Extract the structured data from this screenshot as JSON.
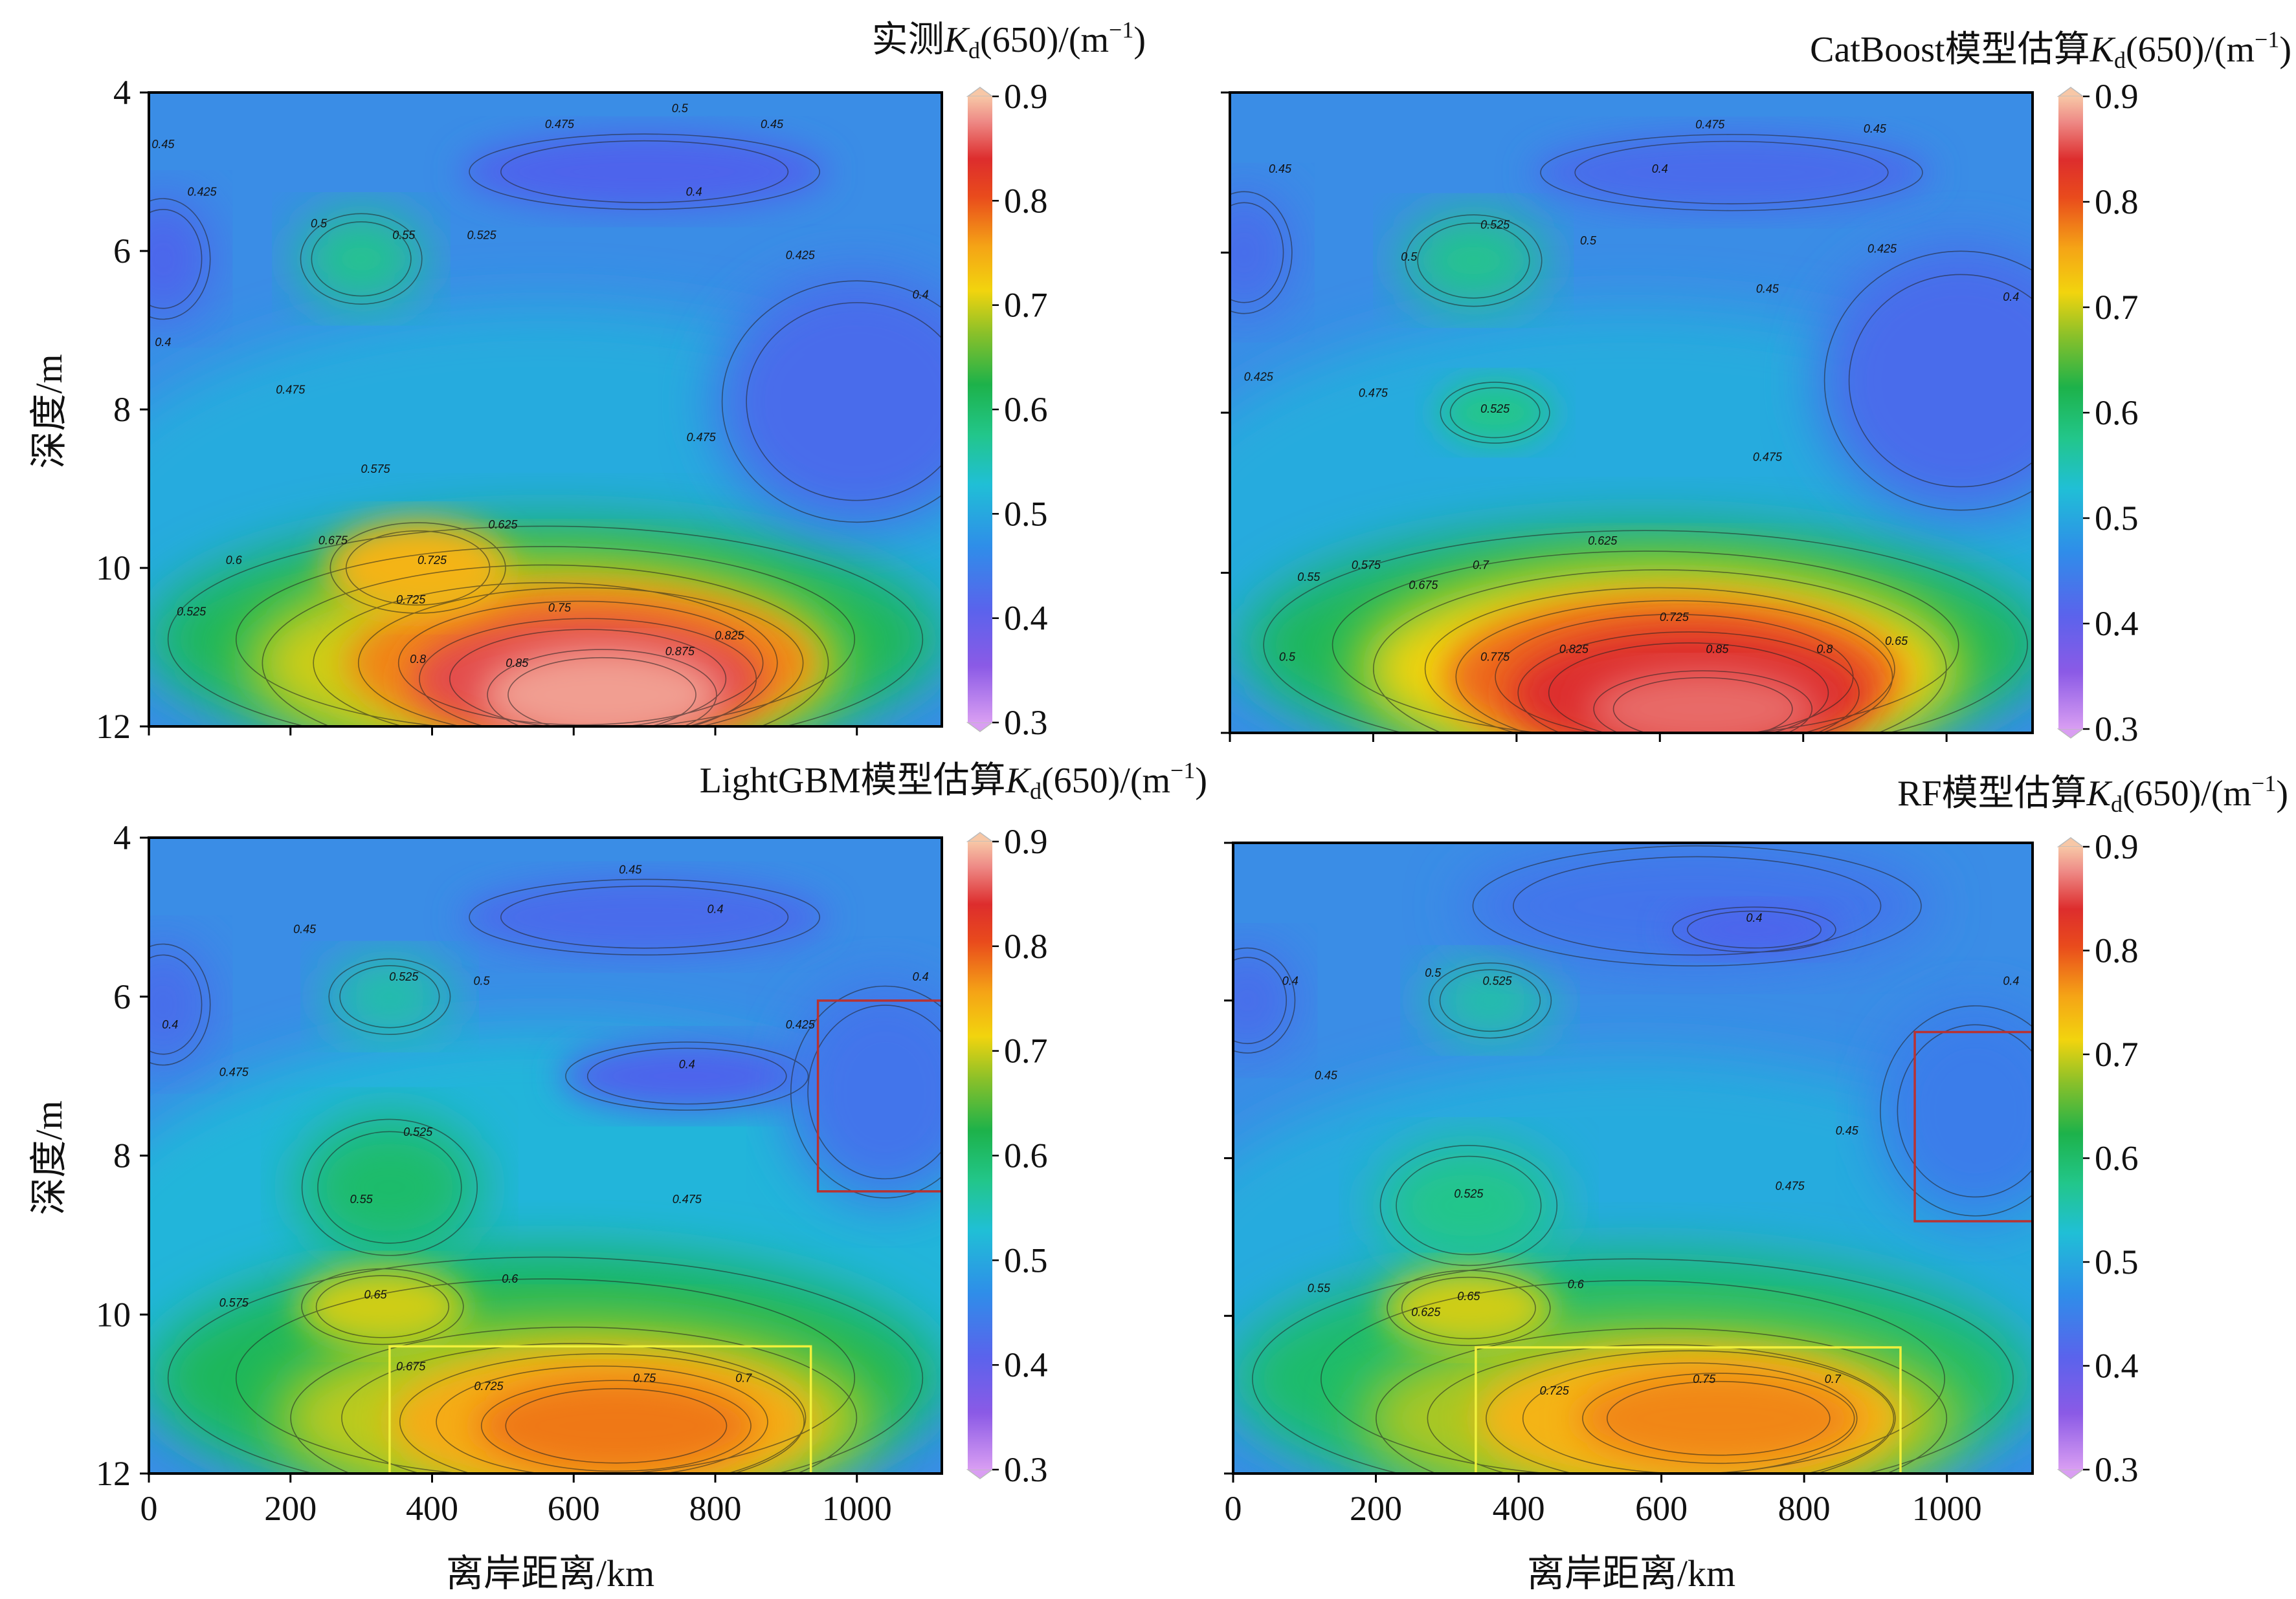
{
  "figure": {
    "x_axis_label": "离岸距离/km",
    "y_axis_label": "深度/m",
    "colorbar_ticks": [
      "0.9",
      "0.8",
      "0.7",
      "0.6",
      "0.5",
      "0.4",
      "0.3"
    ],
    "x_ticks": [
      "0",
      "200",
      "400",
      "600",
      "800",
      "1000"
    ],
    "y_ticks": [
      "4",
      "6",
      "8",
      "10",
      "12"
    ]
  },
  "chart_data": [
    {
      "type": "heatmap",
      "panel": "top-left",
      "title": {
        "prefix": "实测",
        "var": "K",
        "sub": "d",
        "mid": "(650)/(m",
        "sup": "−1",
        "end": ")"
      },
      "x_range": [
        0,
        1120
      ],
      "y_range": [
        4,
        12
      ],
      "color_range": [
        0.3,
        0.9
      ],
      "contour_labels": [
        {
          "x": 750,
          "y": 11.1,
          "v": "0.875"
        },
        {
          "x": 520,
          "y": 11.25,
          "v": "0.85"
        },
        {
          "x": 820,
          "y": 10.9,
          "v": "0.825"
        },
        {
          "x": 380,
          "y": 11.2,
          "v": "0.8"
        },
        {
          "x": 580,
          "y": 10.55,
          "v": "0.75"
        },
        {
          "x": 370,
          "y": 10.45,
          "v": "0.725"
        },
        {
          "x": 400,
          "y": 9.95,
          "v": "0.725"
        },
        {
          "x": 260,
          "y": 9.7,
          "v": "0.675"
        },
        {
          "x": 500,
          "y": 9.5,
          "v": "0.625"
        },
        {
          "x": 320,
          "y": 8.8,
          "v": "0.575"
        },
        {
          "x": 120,
          "y": 9.95,
          "v": "0.6"
        },
        {
          "x": 60,
          "y": 10.6,
          "v": "0.525"
        },
        {
          "x": 360,
          "y": 5.85,
          "v": "0.55"
        },
        {
          "x": 470,
          "y": 5.85,
          "v": "0.525"
        },
        {
          "x": 240,
          "y": 5.7,
          "v": "0.5"
        },
        {
          "x": 200,
          "y": 7.8,
          "v": "0.475"
        },
        {
          "x": 75,
          "y": 5.3,
          "v": "0.425"
        },
        {
          "x": 780,
          "y": 8.4,
          "v": "0.475"
        },
        {
          "x": 580,
          "y": 4.45,
          "v": "0.475"
        },
        {
          "x": 750,
          "y": 4.25,
          "v": "0.5"
        },
        {
          "x": 880,
          "y": 4.45,
          "v": "0.45"
        },
        {
          "x": 770,
          "y": 5.3,
          "v": "0.4"
        },
        {
          "x": 920,
          "y": 6.1,
          "v": "0.425"
        },
        {
          "x": 20,
          "y": 4.7,
          "v": "0.45"
        },
        {
          "x": 1090,
          "y": 6.6,
          "v": "0.4"
        },
        {
          "x": 20,
          "y": 7.2,
          "v": "0.4"
        }
      ]
    },
    {
      "type": "heatmap",
      "panel": "top-right",
      "title": {
        "prefix": "CatBoost模型估算",
        "var": "K",
        "sub": "d",
        "mid": "(650)/(m",
        "sup": "−1",
        "end": ")"
      },
      "x_range": [
        0,
        1120
      ],
      "y_range": [
        4,
        12
      ],
      "color_range": [
        0.3,
        0.9
      ],
      "contour_labels": [
        {
          "x": 680,
          "y": 11.0,
          "v": "0.85"
        },
        {
          "x": 480,
          "y": 11.0,
          "v": "0.825"
        },
        {
          "x": 830,
          "y": 11.0,
          "v": "0.8"
        },
        {
          "x": 370,
          "y": 11.1,
          "v": "0.775"
        },
        {
          "x": 620,
          "y": 10.6,
          "v": "0.725"
        },
        {
          "x": 350,
          "y": 9.95,
          "v": "0.7"
        },
        {
          "x": 270,
          "y": 10.2,
          "v": "0.675"
        },
        {
          "x": 190,
          "y": 9.95,
          "v": "0.575"
        },
        {
          "x": 520,
          "y": 9.65,
          "v": "0.625"
        },
        {
          "x": 110,
          "y": 10.1,
          "v": "0.55"
        },
        {
          "x": 930,
          "y": 10.9,
          "v": "0.65"
        },
        {
          "x": 80,
          "y": 11.1,
          "v": "0.5"
        },
        {
          "x": 370,
          "y": 5.7,
          "v": "0.525"
        },
        {
          "x": 370,
          "y": 8.0,
          "v": "0.525"
        },
        {
          "x": 500,
          "y": 5.9,
          "v": "0.5"
        },
        {
          "x": 250,
          "y": 6.1,
          "v": "0.5"
        },
        {
          "x": 200,
          "y": 7.8,
          "v": "0.475"
        },
        {
          "x": 40,
          "y": 7.6,
          "v": "0.425"
        },
        {
          "x": 750,
          "y": 8.6,
          "v": "0.475"
        },
        {
          "x": 670,
          "y": 4.45,
          "v": "0.475"
        },
        {
          "x": 900,
          "y": 4.5,
          "v": "0.45"
        },
        {
          "x": 70,
          "y": 5.0,
          "v": "0.45"
        },
        {
          "x": 600,
          "y": 5.0,
          "v": "0.4"
        },
        {
          "x": 750,
          "y": 6.5,
          "v": "0.45"
        },
        {
          "x": 910,
          "y": 6.0,
          "v": "0.425"
        },
        {
          "x": 1090,
          "y": 6.6,
          "v": "0.4"
        }
      ]
    },
    {
      "type": "heatmap",
      "panel": "bottom-left",
      "title": {
        "prefix": "LightGBM模型估算",
        "var": "K",
        "sub": "d",
        "mid": "(650)/(m",
        "sup": "−1",
        "end": ")"
      },
      "x_range": [
        0,
        1120
      ],
      "y_range": [
        4,
        12
      ],
      "color_range": [
        0.3,
        0.9
      ],
      "contour_labels": [
        {
          "x": 700,
          "y": 10.85,
          "v": "0.75"
        },
        {
          "x": 480,
          "y": 10.95,
          "v": "0.725"
        },
        {
          "x": 840,
          "y": 10.85,
          "v": "0.7"
        },
        {
          "x": 370,
          "y": 10.7,
          "v": "0.675"
        },
        {
          "x": 320,
          "y": 9.8,
          "v": "0.65"
        },
        {
          "x": 510,
          "y": 9.6,
          "v": "0.6"
        },
        {
          "x": 120,
          "y": 9.9,
          "v": "0.575"
        },
        {
          "x": 300,
          "y": 8.6,
          "v": "0.55"
        },
        {
          "x": 380,
          "y": 7.75,
          "v": "0.525"
        },
        {
          "x": 360,
          "y": 5.8,
          "v": "0.525"
        },
        {
          "x": 470,
          "y": 5.85,
          "v": "0.5"
        },
        {
          "x": 220,
          "y": 5.2,
          "v": "0.45"
        },
        {
          "x": 120,
          "y": 7.0,
          "v": "0.475"
        },
        {
          "x": 760,
          "y": 8.6,
          "v": "0.475"
        },
        {
          "x": 680,
          "y": 4.45,
          "v": "0.45"
        },
        {
          "x": 800,
          "y": 4.95,
          "v": "0.4"
        },
        {
          "x": 760,
          "y": 6.9,
          "v": "0.4"
        },
        {
          "x": 920,
          "y": 6.4,
          "v": "0.425"
        },
        {
          "x": 30,
          "y": 6.4,
          "v": "0.4"
        },
        {
          "x": 1090,
          "y": 5.8,
          "v": "0.4"
        }
      ]
    },
    {
      "type": "heatmap",
      "panel": "bottom-right",
      "title": {
        "prefix": "RF模型估算",
        "var": "K",
        "sub": "d",
        "mid": "(650)/(m",
        "sup": "−1",
        "end": ")"
      },
      "x_range": [
        0,
        1120
      ],
      "y_range": [
        4,
        12
      ],
      "color_range": [
        0.3,
        0.9
      ],
      "contour_labels": [
        {
          "x": 660,
          "y": 10.85,
          "v": "0.75"
        },
        {
          "x": 450,
          "y": 11.0,
          "v": "0.725"
        },
        {
          "x": 840,
          "y": 10.85,
          "v": "0.7"
        },
        {
          "x": 330,
          "y": 9.8,
          "v": "0.65"
        },
        {
          "x": 480,
          "y": 9.65,
          "v": "0.6"
        },
        {
          "x": 270,
          "y": 10.0,
          "v": "0.625"
        },
        {
          "x": 120,
          "y": 9.7,
          "v": "0.55"
        },
        {
          "x": 330,
          "y": 8.5,
          "v": "0.525"
        },
        {
          "x": 370,
          "y": 5.8,
          "v": "0.525"
        },
        {
          "x": 280,
          "y": 5.7,
          "v": "0.5"
        },
        {
          "x": 130,
          "y": 7.0,
          "v": "0.45"
        },
        {
          "x": 780,
          "y": 8.4,
          "v": "0.475"
        },
        {
          "x": 860,
          "y": 7.7,
          "v": "0.45"
        },
        {
          "x": 730,
          "y": 5.0,
          "v": "0.4"
        },
        {
          "x": 80,
          "y": 5.8,
          "v": "0.4"
        },
        {
          "x": 1090,
          "y": 5.8,
          "v": "0.4"
        }
      ]
    }
  ]
}
